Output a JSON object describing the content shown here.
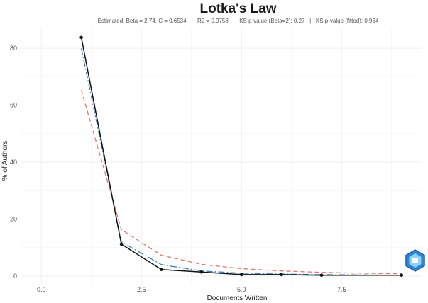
{
  "chart_data": {
    "type": "line",
    "title": "Lotka's Law",
    "subtitle": "Estimated: Beta = 2.74, C = 0.6534   |   R2 = 0.9758   |   KS p-value (Beta=2): 0.27   |   KS p-value (fitted): 0.964",
    "xlabel": "Documents Written",
    "ylabel": "% of Authors",
    "xlim": [
      -0.5,
      9.5
    ],
    "ylim": [
      -3,
      87
    ],
    "xticks": [
      "0.0",
      "2.5",
      "5.0",
      "7.5"
    ],
    "xtick_values": [
      0,
      2.5,
      5,
      7.5
    ],
    "yticks": [
      "0",
      "20",
      "40",
      "60",
      "80"
    ],
    "ytick_values": [
      0,
      20,
      40,
      60,
      80
    ],
    "grid": true,
    "legend": "none",
    "series": [
      {
        "style": "solid",
        "color": "#111111",
        "markers": true,
        "x": [
          1,
          2,
          3,
          4,
          5,
          6,
          7,
          9
        ],
        "y": [
          83.8,
          11.2,
          2.3,
          1.4,
          0.5,
          0.5,
          0.3,
          0.3
        ]
      },
      {
        "style": "dashed",
        "color": "#E0776A",
        "markers": false,
        "x": [
          1,
          2,
          3,
          4,
          5,
          6,
          7,
          8,
          9
        ],
        "y": [
          65.3,
          16.3,
          7.3,
          4.1,
          2.6,
          1.8,
          1.3,
          1.0,
          0.8
        ]
      },
      {
        "style": "dashdot",
        "color": "#3B7FB6",
        "markers": false,
        "x": [
          1,
          2,
          3,
          4,
          5,
          6,
          7,
          8,
          9
        ],
        "y": [
          80.0,
          12.0,
          4.0,
          1.8,
          1.0,
          0.7,
          0.5,
          0.4,
          0.3
        ]
      }
    ]
  },
  "watermark_icon": "bibliometrix-hexagon-icon"
}
